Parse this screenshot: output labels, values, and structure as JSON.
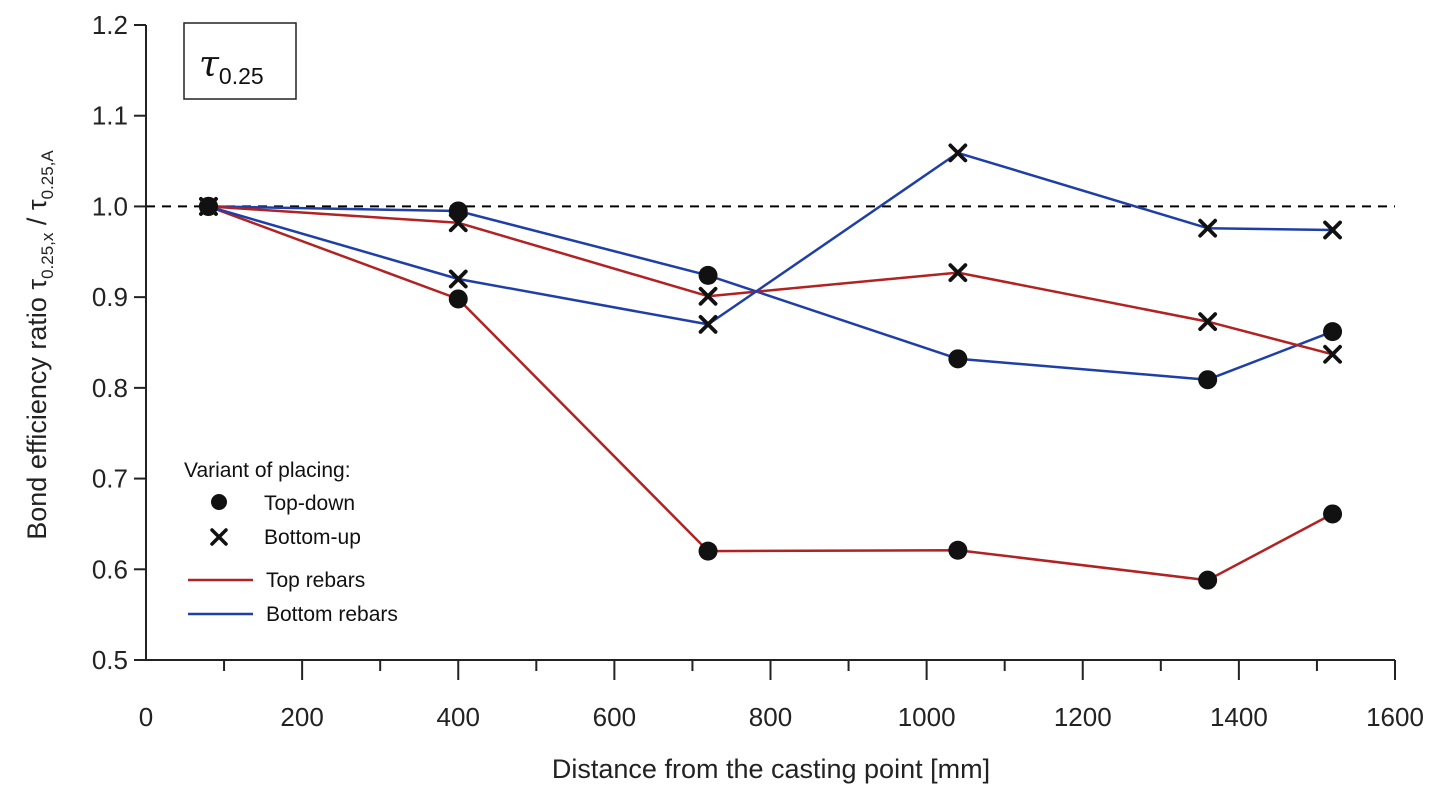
{
  "chart_data": {
    "type": "line",
    "xlabel": "Distance from the casting point [mm]",
    "ylabel_main": "Bond efficiency ratio ",
    "ylabel_num": "τ",
    "ylabel_num_sub": "0.25,x",
    "ylabel_sep": " / ",
    "ylabel_den": "τ",
    "ylabel_den_sub": "0.25,A",
    "xlim": [
      0,
      1600
    ],
    "ylim": [
      0.5,
      1.2
    ],
    "xticks": [
      0,
      200,
      400,
      600,
      800,
      1000,
      1200,
      1400,
      1600
    ],
    "yticks": [
      0.5,
      0.6,
      0.7,
      0.8,
      0.9,
      1.0,
      1.1,
      1.2
    ],
    "xtick_labels": [
      "0",
      "200",
      "400",
      "600",
      "800",
      "1000",
      "1200",
      "1400",
      "1600"
    ],
    "ytick_labels": [
      "0.5",
      "0.6",
      "0.7",
      "0.8",
      "0.9",
      "1.0",
      "1.1",
      "1.2"
    ],
    "reference_line": {
      "y": 1.0,
      "style": "dashed",
      "color": "#000000"
    },
    "annotation": {
      "main": "τ",
      "sub": "0.25"
    },
    "legend": {
      "title": "Variant of placing:",
      "markers": [
        {
          "label": "Top-down",
          "marker": "circle"
        },
        {
          "label": "Bottom-up",
          "marker": "x"
        }
      ],
      "lines": [
        {
          "label": "Top rebars",
          "color": "#b22222"
        },
        {
          "label": "Bottom rebars",
          "color": "#1f3fa8"
        }
      ],
      "position": "lower-left"
    },
    "series": [
      {
        "variant": "Top-down",
        "rebars": "Top rebars",
        "marker": "circle",
        "color": "#b22222",
        "x": [
          80,
          400,
          720,
          1040,
          1360,
          1520
        ],
        "y": [
          1.0,
          0.898,
          0.62,
          0.621,
          0.588,
          0.661
        ]
      },
      {
        "variant": "Top-down",
        "rebars": "Bottom rebars",
        "marker": "circle",
        "color": "#1f3fa8",
        "x": [
          80,
          400,
          720,
          1040,
          1360,
          1520
        ],
        "y": [
          1.0,
          0.995,
          0.924,
          0.832,
          0.809,
          0.862
        ]
      },
      {
        "variant": "Bottom-up",
        "rebars": "Top rebars",
        "marker": "x",
        "color": "#b22222",
        "x": [
          80,
          400,
          720,
          1040,
          1360,
          1520
        ],
        "y": [
          1.0,
          0.982,
          0.901,
          0.927,
          0.873,
          0.837
        ]
      },
      {
        "variant": "Bottom-up",
        "rebars": "Bottom rebars",
        "marker": "x",
        "color": "#1f3fa8",
        "x": [
          80,
          400,
          720,
          1040,
          1360,
          1520
        ],
        "y": [
          1.0,
          0.92,
          0.87,
          1.059,
          0.976,
          0.974
        ]
      }
    ]
  }
}
